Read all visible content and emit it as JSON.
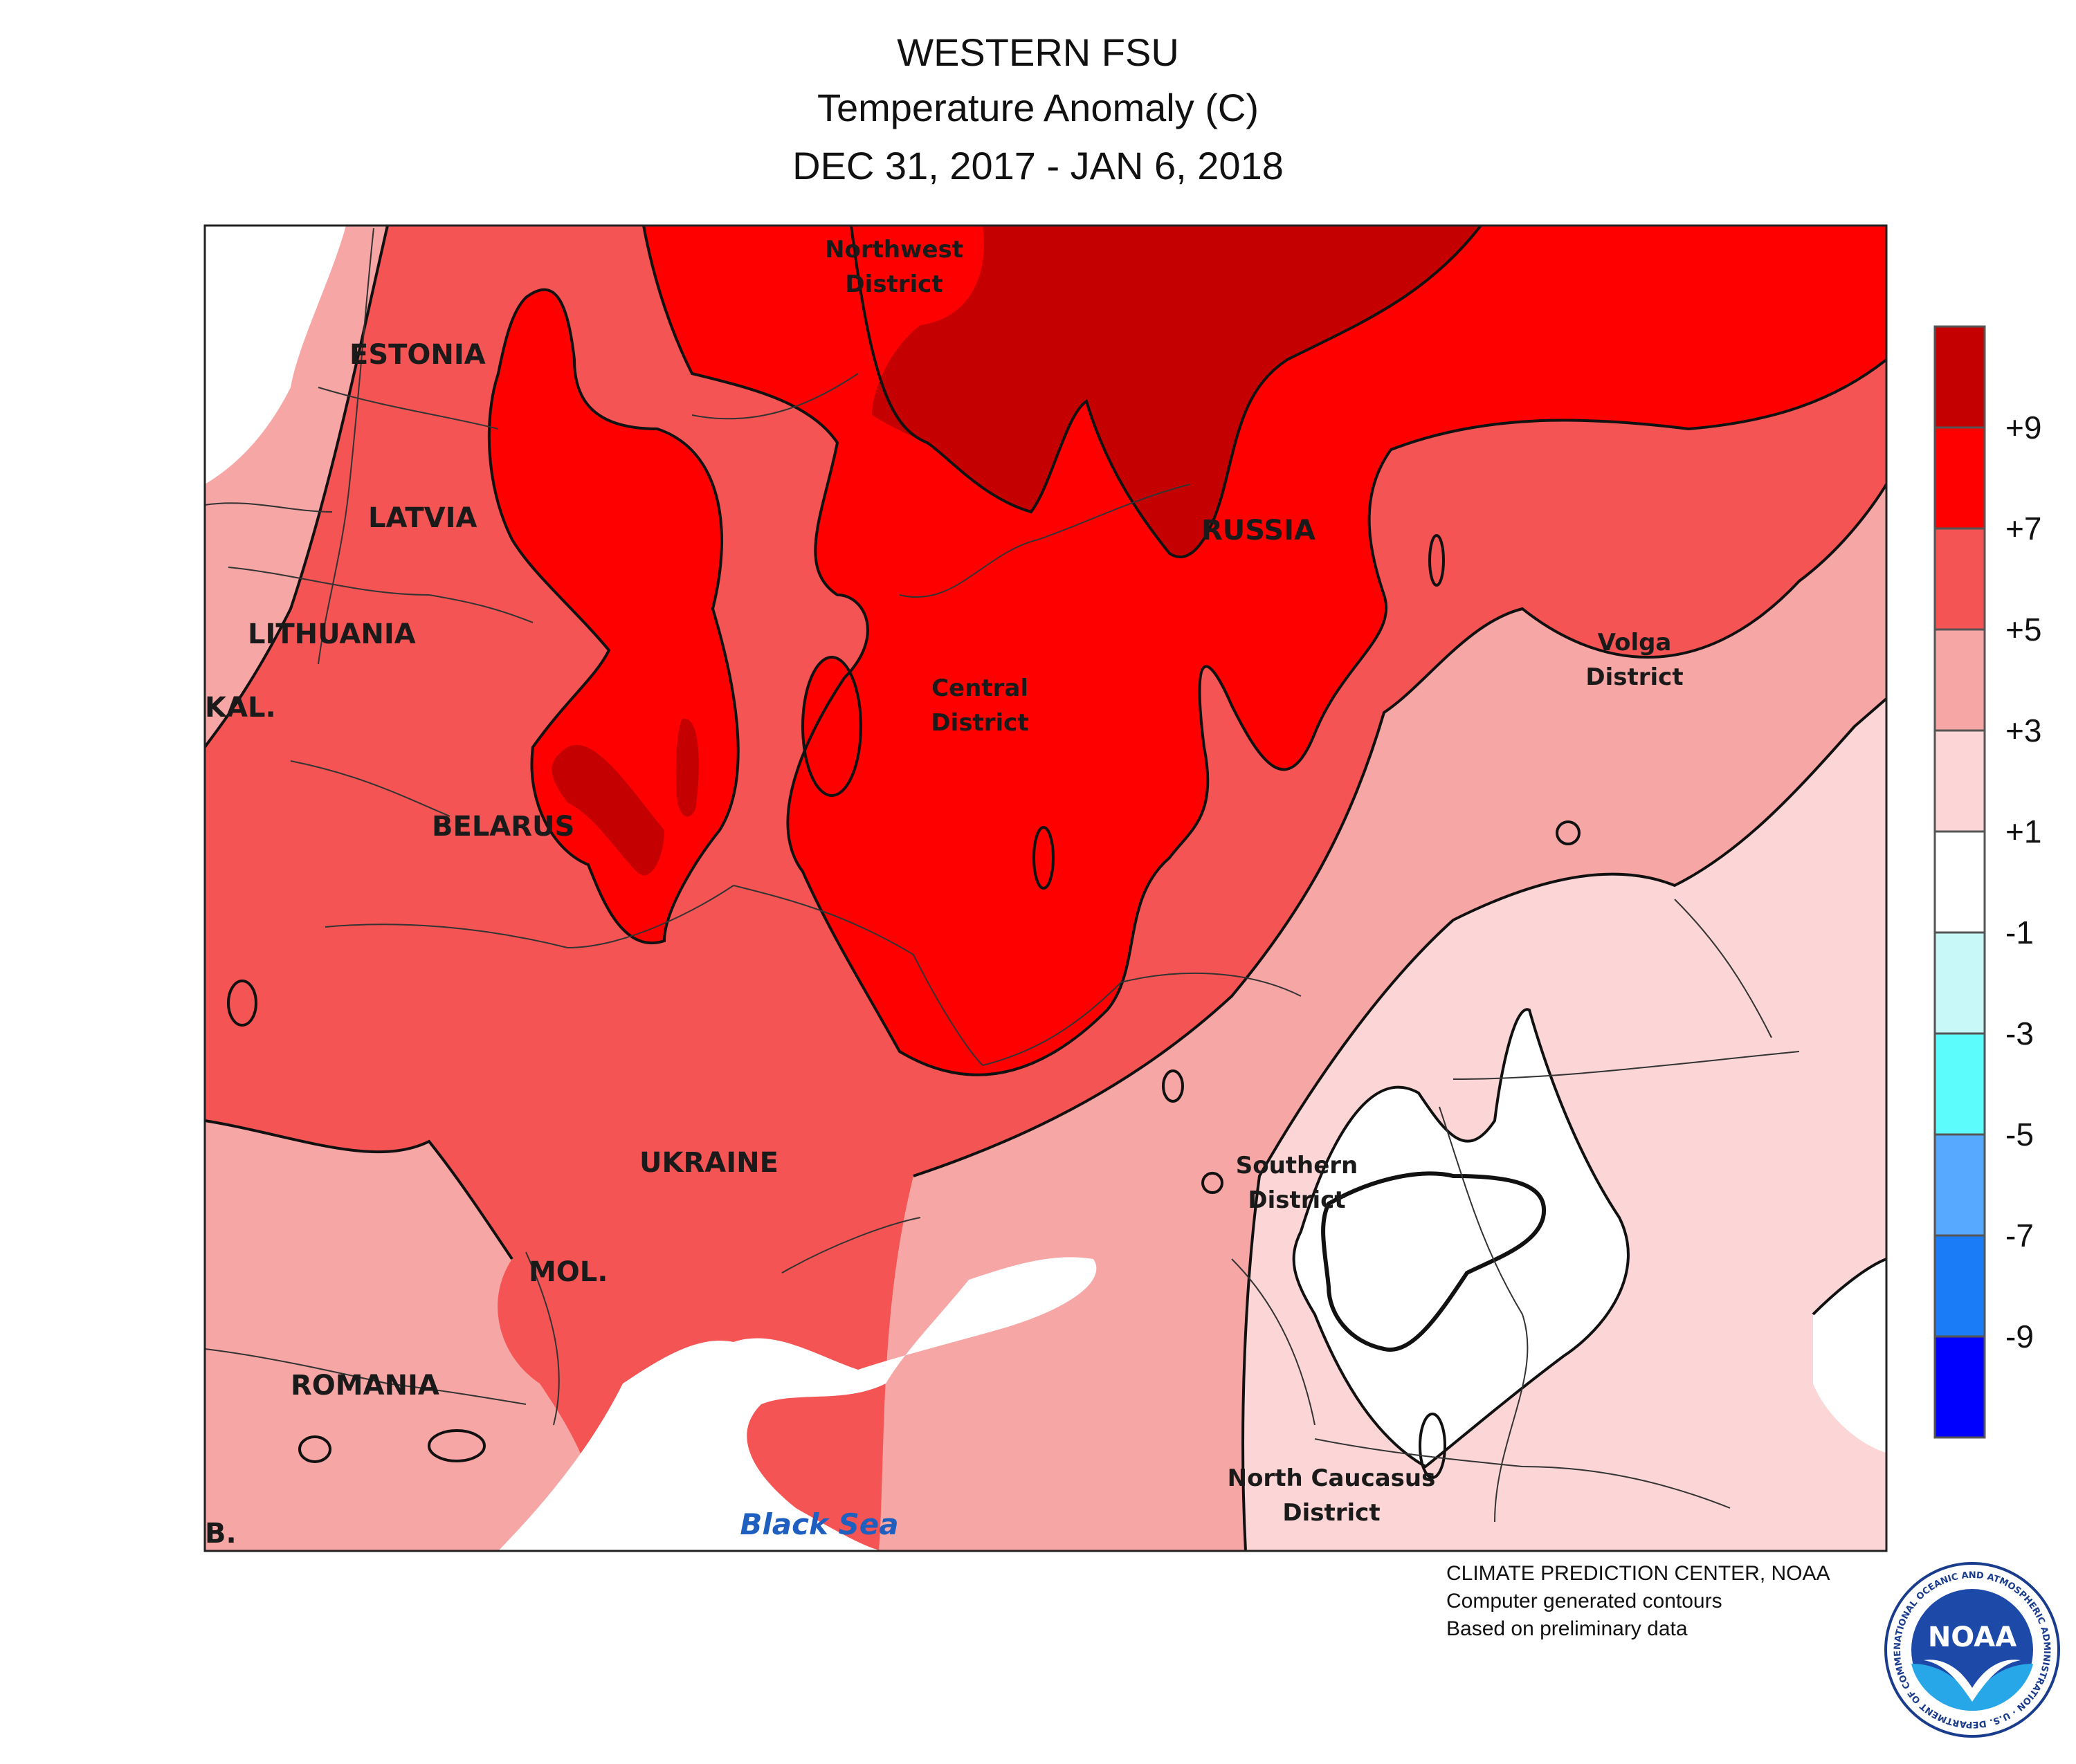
{
  "title": {
    "line1": "WESTERN FSU",
    "line2": "Temperature Anomaly (C)",
    "line3": "DEC 31, 2017 - JAN 6, 2018"
  },
  "map": {
    "countries": {
      "estonia": "ESTONIA",
      "latvia": "LATVIA",
      "lithuania": "LITHUANIA",
      "kaliningrad": "KAL.",
      "belarus": "BELARUS",
      "russia": "RUSSIA",
      "ukraine": "UKRAINE",
      "moldova": "MOL.",
      "romania": "ROMANIA",
      "bulgaria": "B."
    },
    "districts": {
      "northwest_1": "Northwest",
      "northwest_2": "District",
      "central_1": "Central",
      "central_2": "District",
      "volga_1": "Volga",
      "volga_2": "District",
      "southern_1": "Southern",
      "southern_2": "District",
      "caucasus_1": "North Caucasus",
      "caucasus_2": "District"
    },
    "sea": "Black Sea"
  },
  "legend": {
    "colors": [
      "#c40000",
      "#ff0000",
      "#f45454",
      "#f7a6a6",
      "#fcd6d6",
      "#ffffff",
      "#c8f8f8",
      "#5cfcfc",
      "#56a9ff",
      "#1b7cf8",
      "#0000ff"
    ],
    "labels": [
      "+9",
      "+7",
      "+5",
      "+3",
      "+1",
      "-1",
      "-3",
      "-5",
      "-7",
      "-9"
    ]
  },
  "credits": {
    "line1": "CLIMATE PREDICTION CENTER, NOAA",
    "line2": "Computer generated contours",
    "line3": "Based on preliminary data"
  },
  "logo": {
    "text": "NOAA",
    "ring_text": "NATIONAL OCEANIC AND ATMOSPHERIC ADMINISTRATION · U.S. DEPARTMENT OF COMMERCE"
  }
}
